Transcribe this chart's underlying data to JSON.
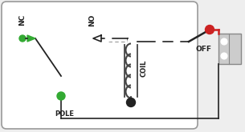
{
  "bg_color": "#eeeeee",
  "box_color": "#ffffff",
  "box_border": "#999999",
  "green_color": "#33aa33",
  "red_color": "#cc2222",
  "dark_color": "#222222",
  "gray_color": "#999999",
  "coil_color": "#444444",
  "nc_label": "NC",
  "no_label": "NO",
  "coil_label": "COIL",
  "pole_label": "POLE",
  "off_label": "OFF",
  "figsize": [
    3.05,
    1.65
  ],
  "dpi": 100
}
